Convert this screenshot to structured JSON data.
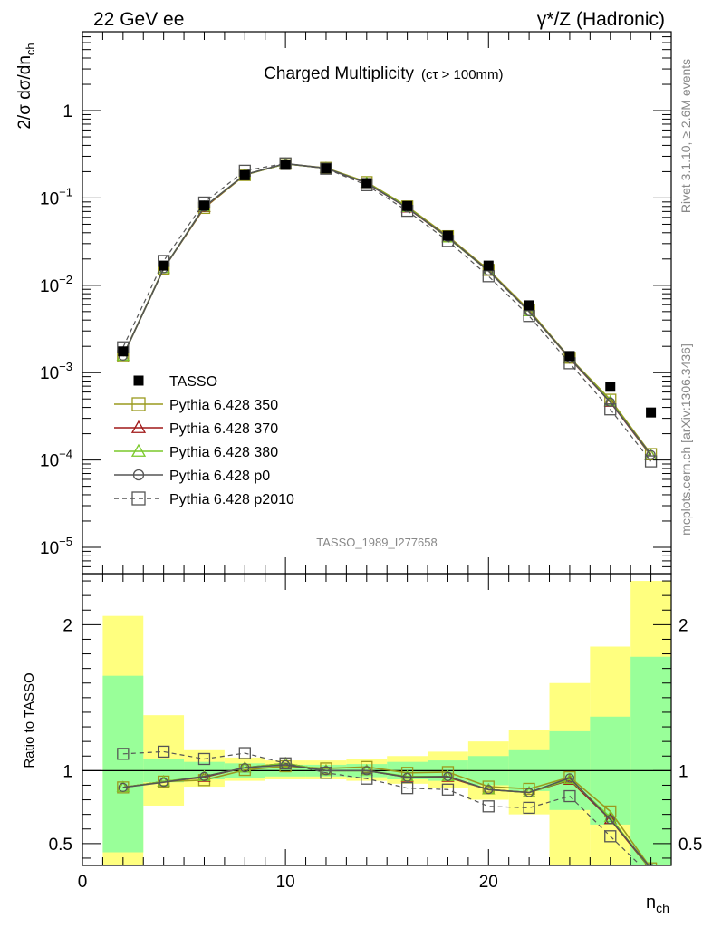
{
  "header": {
    "left": "22 GeV ee",
    "right": "γ*/Z (Hadronic)"
  },
  "side": {
    "rivet": "Rivet 3.1.10, ≥ 2.6M events",
    "mcplots": "mcplots.cern.ch [arXiv:1306.3436]"
  },
  "chart_data": [
    {
      "type": "line",
      "title": "Charged Multiplicity",
      "title_suffix": "(cτ > 100mm)",
      "watermark": "TASSO_1989_I277658",
      "ylabel": "2/σ dσ/dn_ch",
      "xlim": [
        0,
        29
      ],
      "ylim": [
        5e-06,
        8
      ],
      "log_y": true,
      "y_tick_labels": [
        "10^-5",
        "10^-4",
        "10^-3",
        "10^-2",
        "10^-1",
        "1"
      ],
      "legend_position": "left",
      "x": [
        2,
        4,
        6,
        8,
        10,
        12,
        14,
        16,
        18,
        20,
        22,
        24,
        26,
        28
      ],
      "series": [
        {
          "name": "TASSO",
          "color": "#000000",
          "marker": "filled-square",
          "style": "points",
          "values": [
            0.00175,
            0.0168,
            0.082,
            0.182,
            0.239,
            0.218,
            0.148,
            0.081,
            0.037,
            0.0168,
            0.0059,
            0.00155,
            0.00069,
            0.00035
          ]
        },
        {
          "name": "Pythia 6.428 350",
          "color": "#9a9a1e",
          "marker": "open-square",
          "style": "solid",
          "values": [
            0.00155,
            0.0155,
            0.077,
            0.183,
            0.246,
            0.221,
            0.152,
            0.08,
            0.0365,
            0.015,
            0.0052,
            0.00148,
            0.00049,
            0.000117
          ]
        },
        {
          "name": "Pythia 6.428 370",
          "color": "#a01818",
          "marker": "open-triangle",
          "style": "solid",
          "values": [
            0.00155,
            0.0156,
            0.078,
            0.185,
            0.246,
            0.219,
            0.148,
            0.077,
            0.035,
            0.0146,
            0.005,
            0.00145,
            0.00046,
            0.000112
          ]
        },
        {
          "name": "Pythia 6.428 380",
          "color": "#7ac92a",
          "marker": "open-triangle",
          "style": "solid",
          "values": [
            0.00155,
            0.0156,
            0.079,
            0.185,
            0.246,
            0.219,
            0.149,
            0.078,
            0.035,
            0.0146,
            0.005,
            0.00146,
            0.00047,
            0.000113
          ]
        },
        {
          "name": "Pythia 6.428 p0",
          "color": "#555555",
          "marker": "open-circle",
          "style": "solid",
          "values": [
            0.00155,
            0.0155,
            0.079,
            0.185,
            0.248,
            0.219,
            0.148,
            0.077,
            0.0355,
            0.0146,
            0.005,
            0.00147,
            0.00046,
            0.000115
          ]
        },
        {
          "name": "Pythia 6.428 p2010",
          "color": "#555555",
          "marker": "open-square",
          "style": "dashed",
          "values": [
            0.00195,
            0.019,
            0.0887,
            0.205,
            0.249,
            0.216,
            0.14,
            0.0713,
            0.0322,
            0.0127,
            0.00445,
            0.00128,
            0.00038,
            9.65e-05
          ]
        }
      ]
    },
    {
      "type": "line",
      "title": "",
      "ylabel": "Ratio to TASSO",
      "xlabel": "n_ch",
      "xlim": [
        0,
        29
      ],
      "ylim": [
        0.35,
        2.35
      ],
      "x_ticks": [
        0,
        10,
        20
      ],
      "y_ticks": [
        0.5,
        1,
        2
      ],
      "reference_line": 1,
      "bands": [
        {
          "name": "stat",
          "color": "#99ff99",
          "bins": [
            [
              1,
              3,
              0.44,
              1.65
            ],
            [
              3,
              5,
              0.92,
              1.08
            ],
            [
              5,
              7,
              0.94,
              1.06
            ],
            [
              7,
              9,
              0.95,
              1.05
            ],
            [
              9,
              11,
              0.96,
              1.04
            ],
            [
              11,
              13,
              0.96,
              1.04
            ],
            [
              13,
              15,
              0.955,
              1.045
            ],
            [
              15,
              17,
              0.94,
              1.06
            ],
            [
              17,
              19,
              0.93,
              1.07
            ],
            [
              19,
              21,
              0.9,
              1.1
            ],
            [
              21,
              23,
              0.86,
              1.14
            ],
            [
              23,
              25,
              0.73,
              1.27
            ],
            [
              25,
              27,
              0.63,
              1.37
            ],
            [
              27,
              29,
              0.35,
              1.78
            ]
          ]
        },
        {
          "name": "syst",
          "color": "#ffff7f",
          "bins": [
            [
              1,
              3,
              0.35,
              2.06
            ],
            [
              3,
              5,
              0.76,
              1.38
            ],
            [
              5,
              7,
              0.89,
              1.14
            ],
            [
              7,
              9,
              0.93,
              1.09
            ],
            [
              9,
              11,
              0.94,
              1.07
            ],
            [
              11,
              13,
              0.94,
              1.07
            ],
            [
              13,
              15,
              0.93,
              1.08
            ],
            [
              15,
              17,
              0.91,
              1.1
            ],
            [
              17,
              19,
              0.88,
              1.13
            ],
            [
              19,
              21,
              0.8,
              1.2
            ],
            [
              21,
              23,
              0.7,
              1.28
            ],
            [
              23,
              25,
              0.35,
              1.6
            ],
            [
              25,
              27,
              0.35,
              1.85
            ],
            [
              27,
              29,
              0.35,
              2.3
            ]
          ]
        }
      ],
      "x": [
        2,
        4,
        6,
        8,
        10,
        12,
        14,
        16,
        18,
        20,
        22,
        24,
        26,
        28
      ],
      "series": [
        {
          "name": "Pythia 6.428 350",
          "color": "#9a9a1e",
          "marker": "open-square",
          "style": "solid",
          "values": [
            0.885,
            0.925,
            0.935,
            1.005,
            1.03,
            1.015,
            1.025,
            0.985,
            0.99,
            0.89,
            0.875,
            0.955,
            0.72,
            0.33
          ]
        },
        {
          "name": "Pythia 6.428 370",
          "color": "#a01818",
          "marker": "open-triangle",
          "style": "solid",
          "values": [
            0.885,
            0.925,
            0.955,
            1.02,
            1.05,
            1.0,
            1.0,
            0.955,
            0.955,
            0.87,
            0.85,
            0.935,
            0.665,
            0.32
          ]
        },
        {
          "name": "Pythia 6.428 380",
          "color": "#7ac92a",
          "marker": "open-triangle",
          "style": "solid",
          "values": [
            0.885,
            0.925,
            0.96,
            1.02,
            1.05,
            1.0,
            1.0,
            0.96,
            0.96,
            0.87,
            0.85,
            0.94,
            0.68,
            0.32
          ]
        },
        {
          "name": "Pythia 6.428 p0",
          "color": "#555555",
          "marker": "open-circle",
          "style": "solid",
          "values": [
            0.885,
            0.92,
            0.96,
            1.02,
            1.04,
            1.0,
            1.0,
            0.955,
            0.96,
            0.87,
            0.85,
            0.95,
            0.665,
            0.33
          ]
        },
        {
          "name": "Pythia 6.428 p2010",
          "color": "#555555",
          "marker": "open-square",
          "style": "dashed",
          "values": [
            1.115,
            1.13,
            1.08,
            1.12,
            1.05,
            0.985,
            0.945,
            0.88,
            0.87,
            0.755,
            0.745,
            0.825,
            0.55,
            0.28
          ]
        }
      ]
    }
  ]
}
